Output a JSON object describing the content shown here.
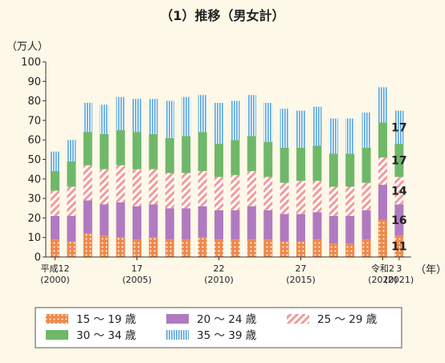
{
  "title": "（1）推移（男女計）",
  "y_unit": "（万人）",
  "x_unit": "（年）",
  "colors": {
    "s15_19": "#f0884a",
    "s20_24": "#b07ac0",
    "s25_29": "#f29a9a",
    "s30_34": "#6fb86a",
    "s35_39": "#5ea8dc",
    "background": "#fdf8e8"
  },
  "chart_data": {
    "type": "bar",
    "stacked": true,
    "ylim": [
      0,
      100
    ],
    "yticks": [
      0,
      10,
      20,
      30,
      40,
      50,
      60,
      70,
      80,
      90,
      100
    ],
    "grid": false,
    "legend_position": "bottom",
    "categories": [
      "2000",
      "2001",
      "2002",
      "2003",
      "2004",
      "2005",
      "2006",
      "2007",
      "2008",
      "2009",
      "2010",
      "2011",
      "2012",
      "2013",
      "2014",
      "2015",
      "2016",
      "2017",
      "2018",
      "2019",
      "2020",
      "2021"
    ],
    "x_tick_labels": [
      {
        "index": 0,
        "lines": [
          "平成12",
          "(2000)"
        ]
      },
      {
        "index": 5,
        "lines": [
          "17",
          "(2005)"
        ]
      },
      {
        "index": 10,
        "lines": [
          "22",
          "(2010)"
        ]
      },
      {
        "index": 15,
        "lines": [
          "27",
          "(2015)"
        ]
      },
      {
        "index": 20,
        "lines": [
          "令和2",
          "(2020)"
        ]
      },
      {
        "index": 21,
        "lines": [
          "3",
          "(2021)"
        ]
      }
    ],
    "series": [
      {
        "name": "15 ～ 19 歳",
        "key": "s15_19",
        "values": [
          9,
          8,
          12,
          11,
          10,
          9,
          10,
          9,
          9,
          10,
          9,
          9,
          9,
          9,
          8,
          8,
          9,
          7,
          7,
          9,
          19,
          11
        ]
      },
      {
        "name": "20 ～ 24 歳",
        "key": "s20_24",
        "values": [
          12,
          13,
          17,
          16,
          18,
          17,
          17,
          16,
          16,
          16,
          15,
          15,
          17,
          15,
          14,
          14,
          14,
          14,
          14,
          15,
          18,
          16
        ]
      },
      {
        "name": "25 ～ 29 歳",
        "key": "s25_29",
        "values": [
          13,
          15,
          18,
          18,
          19,
          19,
          18,
          18,
          18,
          18,
          17,
          18,
          18,
          17,
          16,
          17,
          16,
          15,
          15,
          14,
          14,
          14
        ]
      },
      {
        "name": "30 ～ 34 歳",
        "key": "s30_34",
        "values": [
          10,
          13,
          17,
          18,
          18,
          19,
          18,
          18,
          19,
          20,
          17,
          18,
          18,
          18,
          18,
          17,
          18,
          17,
          17,
          18,
          18,
          17
        ]
      },
      {
        "name": "35 ～ 39 歳",
        "key": "s35_39",
        "values": [
          10,
          11,
          15,
          15,
          17,
          17,
          18,
          19,
          20,
          19,
          21,
          20,
          21,
          20,
          20,
          19,
          20,
          18,
          18,
          18,
          18,
          17
        ]
      }
    ],
    "data_labels": [
      "11",
      "16",
      "14",
      "17",
      "17"
    ]
  }
}
